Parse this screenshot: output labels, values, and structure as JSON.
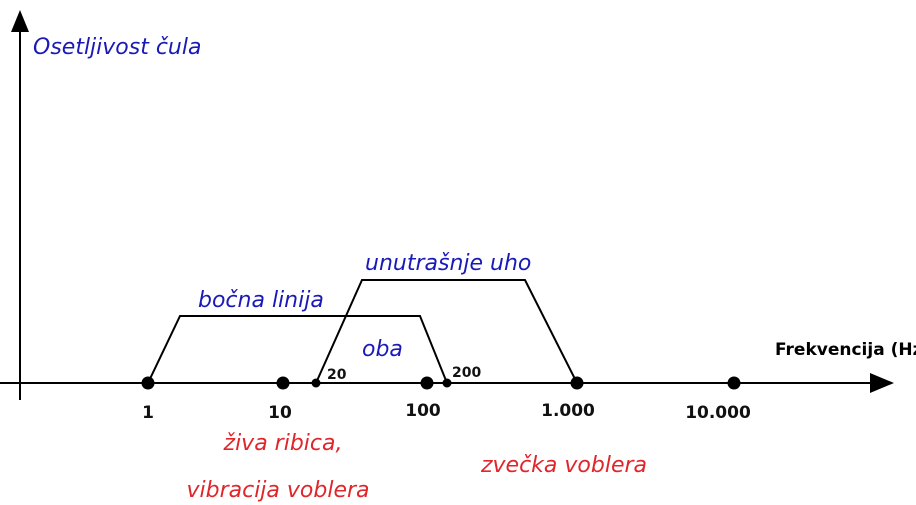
{
  "axes": {
    "y_label": "Osetljivost čula",
    "x_label": "Frekvencija (Hz)",
    "x_ticks": [
      "1",
      "10",
      "100",
      "1.000",
      "10.000"
    ]
  },
  "ranges": [
    {
      "label": "bočna linija"
    },
    {
      "label": "unutrašnje uho"
    }
  ],
  "overlap_label": "oba",
  "points": [
    "20",
    "200"
  ],
  "annotations": [
    "živa ribica,",
    "vibracija voblera",
    "zvečka voblera"
  ]
}
